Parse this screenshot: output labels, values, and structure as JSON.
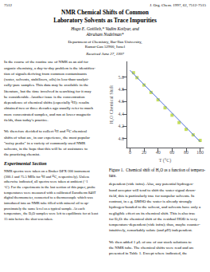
{
  "chart_data": {
    "type": "scatter",
    "title": "NMR Chemical Shifts of Common\nLaboratory Solvents as Trace Impurities",
    "annotations": [
      "7512",
      "J. Org. Chem. 1997, 62, 7512-7515",
      "Hugo E. Gottlieb,* Vadim Kotlyar, and\nAbraham Nudelman*",
      "Department of Chemistry, Bar-Ilan University,\nRamat-Gan 52900, Israel",
      "Received June 27, 1997",
      "In the course of the routine use of NMR as an aid for\norganic chemistry, a day-to-day problem is the identifica-\ntion of signals deriving from common contaminants\n(water, solvents, stabilizers, oils) in less-than-analyti-\ncally-pure samples. This data may be available in the\nliterature, but the time involved in searching for it may\nbe considerable. Another issue is the concentration\ndependence of chemical shifts (especially ¹H); results\nobtained two or three decades ago usually refer to much\nmore concentrated samples, and run at lower magnetic\nfields, than today's practice.\n\nWe therefore decided to collect ¹H and ¹³C chemical\nshifts of what are, in our experience, the most popular\n\"noisy peaks\" in a variety of commonly used NMR\nsolvents, in the hope that this will be of assistance to\nthe practicing chemist.",
      "Experimental Section",
      "NMR spectra were taken on a Bruker DPX-300 instrument\n(300.1 and 75.5 MHz for ¹H and ¹³C, respectively). Unless\notherwise indicated, all spectra were taken at ambient (~1\n°C). For the experiments in the last section of this paper, probe\ntemperatures were measured with a calibrated Eurotherm 840T\ndigital thermometer, connected to a thermocouple which was\nintroduced into an NMR tube filled with mineral oil to ap-\nproximately the same level as a typical sample. At each\ntemperature, the D₂O samples were left to equilibrate for at least\n15 min before the shot was taken.",
      "Figure 1.  Chemical shift of H₂O as a function of tempera-\nture.",
      "dependent (vide infra). Also, any potential hydrogen-\nbond acceptor will tend to shift the water signal down-\nfield, this is particularly true for nonpolar solvents. In\ncontrast, in e.g. DMSO the water is already strongly\nhydrogen-bonded to the solvent, and solvents have only a\nnegligible effect on its chemical shift. This is also true\nfor D₂O: the chemical shift of the residual HOD is very\ntemperature-dependent (vide infra); thus, maybe counter-\nintuitively, remarkably solute (and pH) independent.\n\nWe then added 1 μL of one of our stock solutions to\nthe NMR tube. The chemical shifts were read and are\npresented in Table 1. Except where indicated, the"
    ],
    "xlabel": "T (°C)",
    "ylabel": "H₂O Chemical Shift",
    "xlim": [
      -5,
      105
    ],
    "ylim": [
      3.85,
      5.25
    ],
    "xticks": [
      0,
      20,
      40,
      60,
      80,
      100
    ],
    "yticks": [
      {
        "value": 4.0,
        "label": "4.0"
      },
      {
        "value": 4.2,
        "label": "4.2"
      },
      {
        "value": 4.4,
        "label": "4.4"
      },
      {
        "value": 4.6,
        "label": "4.6"
      },
      {
        "value": 4.8,
        "label": "4.8"
      },
      {
        "value": 5.0,
        "label": "5.0"
      }
    ],
    "grid": false,
    "series": [
      {
        "type": "line",
        "line_style": "solid",
        "x": [
          0,
          100
        ],
        "values": [
          5.11,
          3.95
        ]
      },
      {
        "type": "scatter",
        "marker": "square",
        "x": [
          5,
          10,
          20,
          30,
          40,
          50,
          60,
          70,
          80,
          90,
          100
        ],
        "values": [
          5.07,
          4.99,
          4.87,
          4.75,
          4.63,
          4.5,
          4.38,
          4.26,
          4.15,
          4.06,
          3.97
        ]
      }
    ]
  }
}
